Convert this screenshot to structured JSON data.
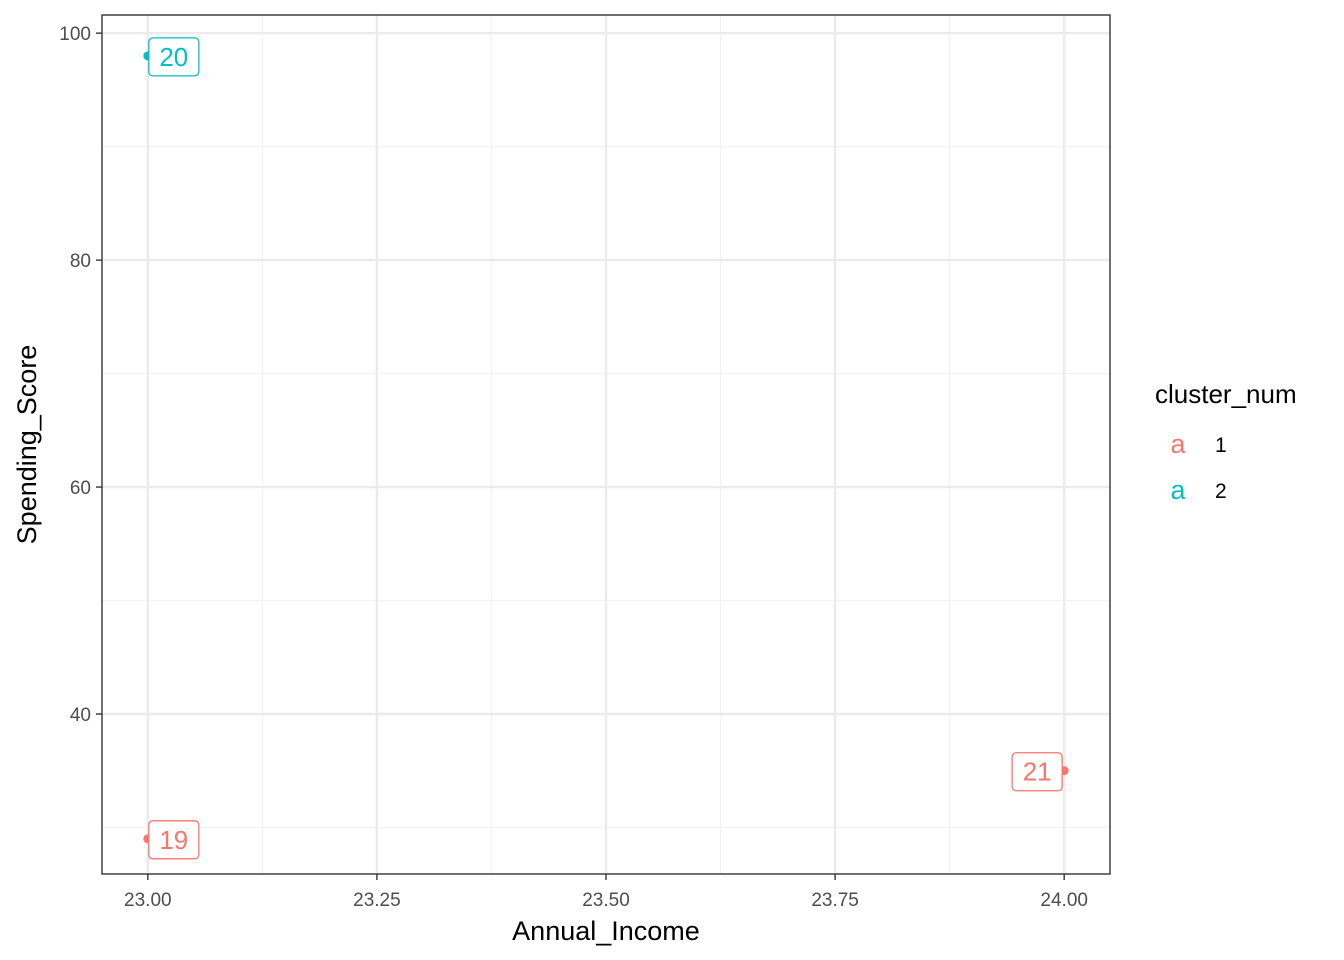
{
  "chart_data": {
    "type": "scatter",
    "xlabel": "Annual_Income",
    "ylabel": "Spending_Score",
    "xlim": [
      22.95,
      24.05
    ],
    "ylim": [
      25.9,
      101.6
    ],
    "x_ticks": [
      {
        "value": 23.0,
        "label": "23.00"
      },
      {
        "value": 23.25,
        "label": "23.25"
      },
      {
        "value": 23.5,
        "label": "23.50"
      },
      {
        "value": 23.75,
        "label": "23.75"
      },
      {
        "value": 24.0,
        "label": "24.00"
      }
    ],
    "y_ticks": [
      {
        "value": 40,
        "label": "40"
      },
      {
        "value": 60,
        "label": "60"
      },
      {
        "value": 80,
        "label": "80"
      },
      {
        "value": 100,
        "label": "100"
      }
    ],
    "x_minor": [
      23.125,
      23.375,
      23.625,
      23.875
    ],
    "y_minor": [
      30,
      50,
      70,
      90
    ],
    "grid": true,
    "legend": {
      "title": "cluster_num",
      "position": "right",
      "key_glyph": "a",
      "entries": [
        {
          "label": "1",
          "color": "#F8766D"
        },
        {
          "label": "2",
          "color": "#00BFC4"
        }
      ]
    },
    "points": [
      {
        "x": 23,
        "y": 98,
        "label": "20",
        "cluster": "2"
      },
      {
        "x": 23,
        "y": 29,
        "label": "19",
        "cluster": "1"
      },
      {
        "x": 24,
        "y": 35,
        "label": "21",
        "cluster": "1"
      }
    ]
  },
  "colors": {
    "cluster_1": "#F8766D",
    "cluster_2": "#00BFC4",
    "grid_major": "#EBEBEB",
    "grid_minor": "#F2F2F2",
    "panel_border": "#333333",
    "tick_text": "#4D4D4D"
  }
}
